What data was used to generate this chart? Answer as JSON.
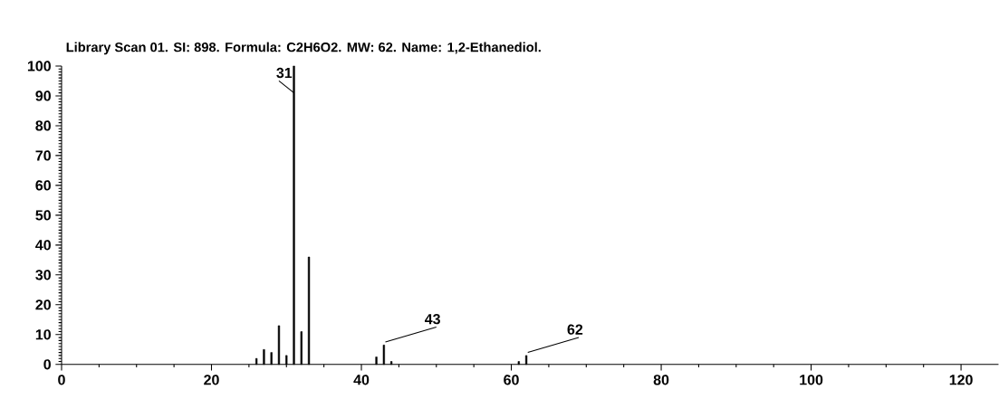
{
  "chart_data": {
    "type": "bar",
    "title": "Library Scan 01. SI:  898. Formula: C2H6O2. MW:  62. Name: 1,2-Ethanediol.",
    "x": [
      26,
      27,
      28,
      29,
      30,
      31,
      32,
      33,
      42,
      43,
      44,
      61,
      62
    ],
    "values": [
      2,
      5,
      4,
      13,
      3,
      100,
      11,
      36,
      2.5,
      6.5,
      1,
      1,
      3
    ],
    "color": "#000000",
    "xlim": [
      0,
      125
    ],
    "ylim": [
      0,
      100
    ],
    "xticks": [
      0,
      20,
      40,
      60,
      80,
      100,
      120
    ],
    "yticks": [
      0,
      10,
      20,
      30,
      40,
      50,
      60,
      70,
      80,
      90,
      100
    ],
    "grid": false,
    "annotations": [
      {
        "text": "31",
        "x": 31,
        "y": 100
      },
      {
        "text": "43",
        "x": 43,
        "y": 6.5
      },
      {
        "text": "62",
        "x": 62,
        "y": 3
      }
    ]
  }
}
